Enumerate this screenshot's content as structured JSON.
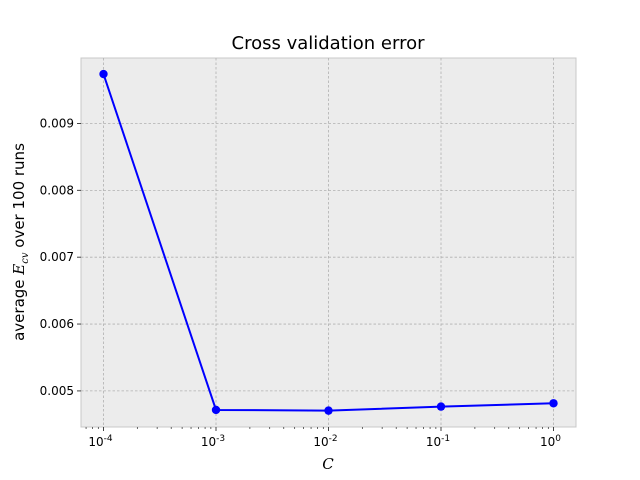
{
  "chart_data": {
    "type": "line",
    "title": "Cross validation error",
    "xlabel": "C",
    "ylabel_prefix": "average ",
    "ylabel_symbol": "E",
    "ylabel_subscript": "cv",
    "ylabel_suffix": " over 100 runs",
    "x_scale": "log",
    "x": [
      0.0001,
      0.001,
      0.01,
      0.1,
      1
    ],
    "x_tick_labels": [
      {
        "base": "10",
        "exp": "-4"
      },
      {
        "base": "10",
        "exp": "-3"
      },
      {
        "base": "10",
        "exp": "-2"
      },
      {
        "base": "10",
        "exp": "-1"
      },
      {
        "base": "10",
        "exp": "0"
      }
    ],
    "series": [
      {
        "values": [
          0.00974,
          0.004715,
          0.004705,
          0.004765,
          0.004815
        ],
        "color": "#0000ff",
        "marker": "circle"
      }
    ],
    "y_ticks": [
      0.005,
      0.006,
      0.007,
      0.008,
      0.009
    ],
    "y_tick_labels": [
      "0.005",
      "0.006",
      "0.007",
      "0.008",
      "0.009"
    ],
    "ylim": [
      0.00446,
      0.00998
    ],
    "xlim_log10": [
      -4.2,
      0.2
    ],
    "grid": true,
    "plot_background": "#ececec",
    "grid_color": "#b0b0b0"
  }
}
